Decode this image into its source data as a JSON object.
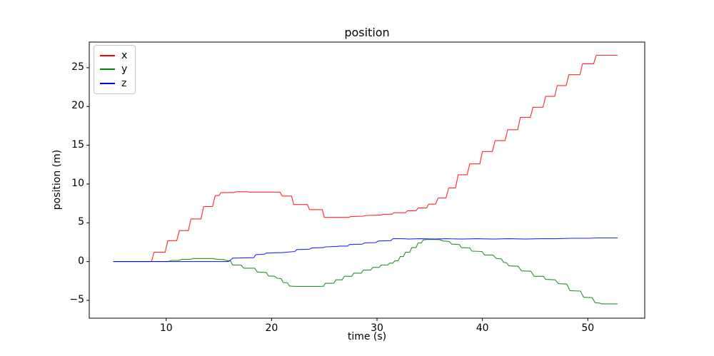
{
  "figure": {
    "background": "#ffffff"
  },
  "chart_data": {
    "type": "line",
    "title": "position",
    "xlabel": "time (s)",
    "ylabel": "position (m)",
    "xlim": [
      2.7,
      55.4
    ],
    "ylim": [
      -7.3,
      28.3
    ],
    "x_ticks": [
      10,
      20,
      30,
      40,
      50
    ],
    "y_ticks": [
      -5,
      0,
      5,
      10,
      15,
      20,
      25
    ],
    "grid": false,
    "frame_color": "#000000",
    "legend": {
      "position": "upper left",
      "entries": [
        "x",
        "y",
        "z"
      ]
    },
    "series": [
      {
        "name": "x",
        "color": "#ff0000",
        "points": [
          [
            5,
            0
          ],
          [
            8.6,
            0
          ],
          [
            8.85,
            1.2
          ],
          [
            9.9,
            1.2
          ],
          [
            10.15,
            2.7
          ],
          [
            11.0,
            2.7
          ],
          [
            11.25,
            4.0
          ],
          [
            12.1,
            4.0
          ],
          [
            12.35,
            5.5
          ],
          [
            13.3,
            5.5
          ],
          [
            13.55,
            7.1
          ],
          [
            14.4,
            7.1
          ],
          [
            14.65,
            8.5
          ],
          [
            15.0,
            8.5
          ],
          [
            15.2,
            8.9
          ],
          [
            16.4,
            8.9
          ],
          [
            16.6,
            9.0
          ],
          [
            17.6,
            9.0
          ],
          [
            18.0,
            8.95
          ],
          [
            20.8,
            8.95
          ],
          [
            21.0,
            8.45
          ],
          [
            21.9,
            8.45
          ],
          [
            22.1,
            7.35
          ],
          [
            23.4,
            7.35
          ],
          [
            23.6,
            6.7
          ],
          [
            24.8,
            6.7
          ],
          [
            25.0,
            5.7
          ],
          [
            27.3,
            5.7
          ],
          [
            27.5,
            5.8
          ],
          [
            28.7,
            5.85
          ],
          [
            29.0,
            5.95
          ],
          [
            30.4,
            6.0
          ],
          [
            30.6,
            6.1
          ],
          [
            31.4,
            6.1
          ],
          [
            31.6,
            6.3
          ],
          [
            32.7,
            6.3
          ],
          [
            32.9,
            6.55
          ],
          [
            33.7,
            6.55
          ],
          [
            33.9,
            6.9
          ],
          [
            34.7,
            6.9
          ],
          [
            34.9,
            7.4
          ],
          [
            35.55,
            7.4
          ],
          [
            35.8,
            8.2
          ],
          [
            36.55,
            8.2
          ],
          [
            36.8,
            9.5
          ],
          [
            37.45,
            9.5
          ],
          [
            37.7,
            11.2
          ],
          [
            38.55,
            11.2
          ],
          [
            38.8,
            12.6
          ],
          [
            39.75,
            12.6
          ],
          [
            40.0,
            14.2
          ],
          [
            40.95,
            14.2
          ],
          [
            41.2,
            15.6
          ],
          [
            42.15,
            15.6
          ],
          [
            42.4,
            17.0
          ],
          [
            43.35,
            17.0
          ],
          [
            43.6,
            18.6
          ],
          [
            44.55,
            18.6
          ],
          [
            44.8,
            19.9
          ],
          [
            45.75,
            19.9
          ],
          [
            46.0,
            21.3
          ],
          [
            46.85,
            21.3
          ],
          [
            47.1,
            22.7
          ],
          [
            47.95,
            22.7
          ],
          [
            48.2,
            24.1
          ],
          [
            49.25,
            24.1
          ],
          [
            49.5,
            25.5
          ],
          [
            50.55,
            25.5
          ],
          [
            50.8,
            26.6
          ],
          [
            52.8,
            26.6
          ]
        ]
      },
      {
        "name": "y",
        "color": "#008000",
        "points": [
          [
            5,
            0
          ],
          [
            10.2,
            0
          ],
          [
            10.5,
            0.15
          ],
          [
            11.2,
            0.15
          ],
          [
            11.5,
            0.3
          ],
          [
            12.3,
            0.3
          ],
          [
            12.6,
            0.4
          ],
          [
            14.4,
            0.4
          ],
          [
            14.8,
            0.3
          ],
          [
            15.5,
            0.25
          ],
          [
            15.8,
            0.1
          ],
          [
            16.1,
            0.1
          ],
          [
            16.3,
            -0.45
          ],
          [
            17.1,
            -0.45
          ],
          [
            17.35,
            -0.85
          ],
          [
            18.4,
            -0.85
          ],
          [
            18.65,
            -1.35
          ],
          [
            19.5,
            -1.4
          ],
          [
            19.7,
            -1.85
          ],
          [
            20.3,
            -1.9
          ],
          [
            20.5,
            -2.15
          ],
          [
            20.9,
            -2.2
          ],
          [
            21.1,
            -2.7
          ],
          [
            21.5,
            -2.75
          ],
          [
            21.7,
            -3.15
          ],
          [
            22.2,
            -3.2
          ],
          [
            24.9,
            -3.2
          ],
          [
            25.1,
            -2.8
          ],
          [
            25.9,
            -2.8
          ],
          [
            26.1,
            -2.35
          ],
          [
            26.7,
            -2.35
          ],
          [
            26.9,
            -1.9
          ],
          [
            27.6,
            -1.9
          ],
          [
            27.8,
            -1.5
          ],
          [
            28.5,
            -1.5
          ],
          [
            28.7,
            -1.1
          ],
          [
            29.4,
            -1.1
          ],
          [
            29.6,
            -0.75
          ],
          [
            30.2,
            -0.75
          ],
          [
            30.4,
            -0.45
          ],
          [
            31.0,
            -0.45
          ],
          [
            31.2,
            -0.2
          ],
          [
            31.5,
            -0.2
          ],
          [
            31.7,
            0.1
          ],
          [
            32.0,
            0.1
          ],
          [
            32.2,
            0.65
          ],
          [
            32.5,
            0.65
          ],
          [
            32.7,
            1.2
          ],
          [
            33.1,
            1.2
          ],
          [
            33.3,
            1.8
          ],
          [
            33.7,
            1.8
          ],
          [
            33.9,
            2.4
          ],
          [
            34.2,
            2.4
          ],
          [
            34.4,
            2.8
          ],
          [
            34.7,
            2.85
          ],
          [
            35.9,
            2.85
          ],
          [
            36.3,
            2.65
          ],
          [
            36.85,
            2.6
          ],
          [
            37.1,
            2.25
          ],
          [
            37.8,
            2.2
          ],
          [
            38.0,
            1.8
          ],
          [
            38.8,
            1.75
          ],
          [
            39.0,
            1.35
          ],
          [
            39.95,
            1.3
          ],
          [
            40.2,
            0.85
          ],
          [
            41.0,
            0.85
          ],
          [
            41.3,
            0.4
          ],
          [
            41.8,
            0.35
          ],
          [
            42.0,
            -0.1
          ],
          [
            42.3,
            -0.15
          ],
          [
            42.5,
            -0.55
          ],
          [
            43.4,
            -0.6
          ],
          [
            43.7,
            -1.2
          ],
          [
            44.6,
            -1.25
          ],
          [
            44.9,
            -1.9
          ],
          [
            45.8,
            -1.9
          ],
          [
            46.0,
            -2.3
          ],
          [
            46.9,
            -2.35
          ],
          [
            47.2,
            -2.85
          ],
          [
            48.0,
            -2.9
          ],
          [
            48.3,
            -3.75
          ],
          [
            49.3,
            -3.8
          ],
          [
            49.6,
            -4.6
          ],
          [
            50.4,
            -4.65
          ],
          [
            50.7,
            -5.3
          ],
          [
            51.1,
            -5.35
          ],
          [
            51.3,
            -5.45
          ],
          [
            52.8,
            -5.45
          ]
        ]
      },
      {
        "name": "z",
        "color": "#0000ff",
        "points": [
          [
            5,
            0
          ],
          [
            15.9,
            0
          ],
          [
            16.1,
            0.2
          ],
          [
            16.3,
            0.45
          ],
          [
            18.3,
            0.5
          ],
          [
            18.5,
            0.9
          ],
          [
            19.3,
            0.95
          ],
          [
            19.5,
            1.1
          ],
          [
            21.0,
            1.15
          ],
          [
            22.2,
            1.3
          ],
          [
            22.4,
            1.55
          ],
          [
            23.6,
            1.6
          ],
          [
            23.8,
            1.75
          ],
          [
            24.9,
            1.8
          ],
          [
            25.1,
            1.9
          ],
          [
            26.2,
            1.95
          ],
          [
            26.4,
            2.0
          ],
          [
            27.2,
            2.0
          ],
          [
            27.4,
            2.2
          ],
          [
            28.6,
            2.25
          ],
          [
            28.8,
            2.4
          ],
          [
            29.9,
            2.45
          ],
          [
            30.1,
            2.65
          ],
          [
            31.3,
            2.7
          ],
          [
            31.5,
            2.95
          ],
          [
            32.5,
            2.95
          ],
          [
            33.0,
            2.9
          ],
          [
            34.0,
            2.95
          ],
          [
            35.5,
            2.9
          ],
          [
            36.5,
            2.95
          ],
          [
            38.0,
            2.9
          ],
          [
            39.5,
            2.95
          ],
          [
            41.0,
            2.9
          ],
          [
            42.5,
            2.95
          ],
          [
            44.0,
            2.9
          ],
          [
            45.5,
            2.95
          ],
          [
            47.0,
            2.95
          ],
          [
            48.5,
            3.0
          ],
          [
            50.0,
            3.0
          ],
          [
            51.0,
            3.05
          ],
          [
            52.8,
            3.05
          ]
        ]
      }
    ]
  }
}
